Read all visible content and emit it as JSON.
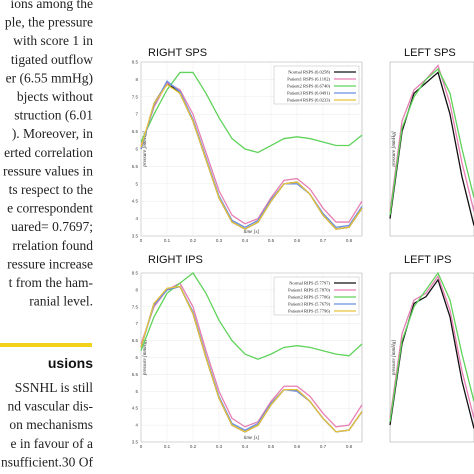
{
  "paper": {
    "lines": [
      "ions among the",
      "ple, the pressure",
      "with score 1 in",
      "tigated outflow",
      "er (6.55 mmHg)",
      "bjects without",
      "struction (6.01",
      "). Moreover, in",
      "erted correlation",
      "ressure values in",
      "ts respect to the",
      "e correspondent",
      "uared= 0.7697;",
      "rrelation found",
      "ressure increase",
      "t from the ham-",
      "ranial level."
    ],
    "heading": "usions",
    "lines2": [
      "SSNHL is still",
      "nd vascular dis-",
      "on mechanisms",
      "e in favour of a",
      "nsufficient.30 Of"
    ]
  },
  "chart_data": [
    {
      "type": "line",
      "title": "RIGHT SPS",
      "xlabel": "time [s]",
      "ylabel": "pressure [mmHg]",
      "x": [
        0,
        0.05,
        0.1,
        0.15,
        0.2,
        0.25,
        0.3,
        0.35,
        0.4,
        0.45,
        0.5,
        0.55,
        0.6,
        0.65,
        0.7,
        0.75,
        0.8,
        0.85
      ],
      "xlim": [
        0,
        0.85
      ],
      "ylim": [
        3.5,
        8.5
      ],
      "xticks": [
        0,
        0.1,
        0.2,
        0.3,
        0.4,
        0.5,
        0.6,
        0.7,
        0.8
      ],
      "yticks": [
        3.5,
        4,
        4.5,
        5,
        5.5,
        6,
        6.5,
        7,
        7.5,
        8,
        8.5
      ],
      "series": [
        {
          "name": "Normal RSPS (6.0258)",
          "color": "#111111",
          "values": [
            6.0,
            7.3,
            7.9,
            7.6,
            6.8,
            5.7,
            4.6,
            3.9,
            3.7,
            3.9,
            4.5,
            5.0,
            5.05,
            4.7,
            4.1,
            3.7,
            3.75,
            4.3
          ]
        },
        {
          "name": "Patient1 RSPS (6.1102)",
          "color": "#e77fb3",
          "values": [
            6.1,
            7.2,
            7.9,
            7.7,
            7.0,
            5.9,
            4.8,
            4.1,
            3.85,
            4.0,
            4.6,
            5.1,
            5.15,
            4.85,
            4.3,
            3.9,
            3.9,
            4.5
          ]
        },
        {
          "name": "Patient2 RSPS (6.6740)",
          "color": "#5fd35a",
          "values": [
            6.2,
            7.0,
            7.7,
            8.2,
            8.2,
            7.6,
            6.9,
            6.3,
            6.0,
            5.9,
            6.1,
            6.3,
            6.35,
            6.3,
            6.2,
            6.1,
            6.1,
            6.4
          ]
        },
        {
          "name": "Patient3 RSPS (6.0491)",
          "color": "#6b8fe0",
          "values": [
            6.0,
            7.25,
            7.95,
            7.65,
            6.85,
            5.75,
            4.65,
            3.95,
            3.75,
            3.95,
            4.55,
            5.0,
            5.0,
            4.7,
            4.15,
            3.75,
            3.8,
            4.35
          ]
        },
        {
          "name": "Patient4 RSPS (6.0233)",
          "color": "#e6c33a",
          "values": [
            6.05,
            7.3,
            7.85,
            7.6,
            6.8,
            5.7,
            4.6,
            3.9,
            3.7,
            3.9,
            4.5,
            5.0,
            5.05,
            4.7,
            4.1,
            3.7,
            3.75,
            4.3
          ]
        }
      ]
    },
    {
      "type": "line",
      "title": "LEFT SPS",
      "ylabel": "pressure [mmHg]",
      "x": [
        0,
        0.04,
        0.08,
        0.12,
        0.16,
        0.2,
        0.24,
        0.28
      ],
      "xlim": [
        0,
        0.28
      ],
      "ylim": [
        3.5,
        8.5
      ],
      "series": [
        {
          "color": "#111111",
          "values": [
            4.0,
            6.5,
            7.6,
            7.9,
            8.2,
            7.0,
            5.2,
            3.8
          ]
        },
        {
          "color": "#e77fb3",
          "values": [
            4.2,
            6.8,
            7.7,
            8.0,
            8.4,
            7.3,
            5.6,
            4.2
          ]
        },
        {
          "color": "#5fd35a",
          "values": [
            4.1,
            6.6,
            7.5,
            8.0,
            8.3,
            7.6,
            6.0,
            4.6
          ]
        }
      ]
    },
    {
      "type": "line",
      "title": "RIGHT IPS",
      "xlabel": "time [s]",
      "ylabel": "pressure [mmHg]",
      "x": [
        0,
        0.05,
        0.1,
        0.15,
        0.2,
        0.25,
        0.3,
        0.35,
        0.4,
        0.45,
        0.5,
        0.55,
        0.6,
        0.65,
        0.7,
        0.75,
        0.8,
        0.85
      ],
      "xlim": [
        0,
        0.85
      ],
      "ylim": [
        3.5,
        8.5
      ],
      "xticks": [
        0,
        0.1,
        0.2,
        0.3,
        0.4,
        0.5,
        0.6,
        0.7,
        0.8
      ],
      "yticks": [
        3.5,
        4,
        4.5,
        5,
        5.5,
        6,
        6.5,
        7,
        7.5,
        8,
        8.5
      ],
      "series": [
        {
          "name": "Normal RIPS (5.7797)",
          "color": "#111111",
          "values": [
            6.3,
            7.6,
            8.0,
            8.1,
            7.3,
            6.0,
            4.8,
            4.0,
            3.8,
            4.0,
            4.6,
            5.05,
            5.05,
            4.7,
            4.2,
            3.8,
            3.85,
            4.4
          ]
        },
        {
          "name": "Patient1 RIPS (5.7870)",
          "color": "#e77fb3",
          "values": [
            6.4,
            7.5,
            8.0,
            8.2,
            7.5,
            6.2,
            5.0,
            4.2,
            3.95,
            4.1,
            4.7,
            5.15,
            5.15,
            4.85,
            4.35,
            3.95,
            4.0,
            4.6
          ]
        },
        {
          "name": "Patient2 RIPS (5.7706)",
          "color": "#5fd35a",
          "values": [
            6.2,
            7.2,
            7.9,
            8.2,
            8.5,
            7.9,
            7.1,
            6.5,
            6.1,
            5.95,
            6.1,
            6.3,
            6.35,
            6.3,
            6.2,
            6.1,
            6.05,
            6.4
          ]
        },
        {
          "name": "Patient3 RIPS (5.7679)",
          "color": "#6b8fe0",
          "values": [
            6.3,
            7.55,
            8.0,
            8.1,
            7.35,
            6.05,
            4.85,
            4.05,
            3.85,
            4.05,
            4.65,
            5.05,
            5.0,
            4.7,
            4.2,
            3.8,
            3.85,
            4.4
          ]
        },
        {
          "name": "Patient4 RIPS (5.7796)",
          "color": "#e6c33a",
          "values": [
            6.3,
            7.6,
            8.05,
            8.1,
            7.3,
            6.0,
            4.8,
            4.0,
            3.8,
            4.0,
            4.6,
            5.05,
            5.05,
            4.7,
            4.2,
            3.8,
            3.85,
            4.4
          ]
        }
      ]
    },
    {
      "type": "line",
      "title": "LEFT IPS",
      "ylabel": "pressure [mmHg]",
      "x": [
        0,
        0.04,
        0.08,
        0.12,
        0.16,
        0.2,
        0.24,
        0.28
      ],
      "xlim": [
        0,
        0.28
      ],
      "ylim": [
        3.5,
        8.5
      ],
      "series": [
        {
          "color": "#111111",
          "values": [
            4.0,
            6.4,
            7.6,
            7.8,
            8.3,
            7.2,
            5.3,
            3.9
          ]
        },
        {
          "color": "#e77fb3",
          "values": [
            4.2,
            6.7,
            7.7,
            7.9,
            8.4,
            7.4,
            5.6,
            4.2
          ]
        },
        {
          "color": "#5fd35a",
          "values": [
            4.1,
            6.5,
            7.5,
            8.0,
            8.5,
            7.7,
            6.1,
            4.7
          ]
        }
      ]
    }
  ]
}
